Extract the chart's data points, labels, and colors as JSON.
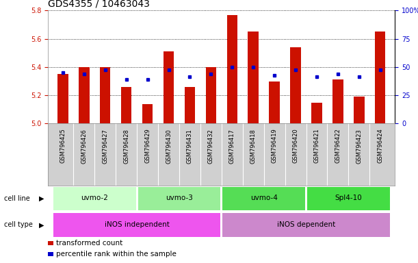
{
  "title": "GDS4355 / 10463043",
  "samples": [
    "GSM796425",
    "GSM796426",
    "GSM796427",
    "GSM796428",
    "GSM796429",
    "GSM796430",
    "GSM796431",
    "GSM796432",
    "GSM796417",
    "GSM796418",
    "GSM796419",
    "GSM796420",
    "GSM796421",
    "GSM796422",
    "GSM796423",
    "GSM796424"
  ],
  "bar_values": [
    5.35,
    5.4,
    5.4,
    5.26,
    5.14,
    5.51,
    5.26,
    5.4,
    5.77,
    5.65,
    5.3,
    5.54,
    5.15,
    5.31,
    5.19,
    5.65
  ],
  "blue_values": [
    5.36,
    5.35,
    5.38,
    5.31,
    5.31,
    5.38,
    5.33,
    5.35,
    5.4,
    5.4,
    5.34,
    5.38,
    5.33,
    5.35,
    5.33,
    5.38
  ],
  "bar_color": "#cc1100",
  "blue_color": "#0000cc",
  "ymin": 5.0,
  "ymax": 5.8,
  "yticks_left": [
    5.0,
    5.2,
    5.4,
    5.6,
    5.8
  ],
  "yticks_right": [
    0,
    25,
    50,
    75,
    100
  ],
  "yright_labels": [
    "0",
    "25",
    "50",
    "75",
    "100%"
  ],
  "cell_line_groups": [
    {
      "label": "uvmo-2",
      "start": 0,
      "end": 3,
      "color": "#ccffcc"
    },
    {
      "label": "uvmo-3",
      "start": 4,
      "end": 7,
      "color": "#99ee99"
    },
    {
      "label": "uvmo-4",
      "start": 8,
      "end": 11,
      "color": "#55dd55"
    },
    {
      "label": "Spl4-10",
      "start": 12,
      "end": 15,
      "color": "#44dd44"
    }
  ],
  "cell_type_groups": [
    {
      "label": "iNOS independent",
      "start": 0,
      "end": 7,
      "color": "#ee55ee"
    },
    {
      "label": "iNOS dependent",
      "start": 8,
      "end": 15,
      "color": "#cc88cc"
    }
  ],
  "legend_items": [
    {
      "color": "#cc1100",
      "label": "transformed count"
    },
    {
      "color": "#0000cc",
      "label": "percentile rank within the sample"
    }
  ],
  "bar_width": 0.5,
  "tick_label_fontsize": 6.0,
  "title_fontsize": 10,
  "axis_label_color_left": "#cc1100",
  "axis_label_color_right": "#0000cc",
  "bg_color": "#ffffff",
  "plot_bg_color": "#ffffff"
}
